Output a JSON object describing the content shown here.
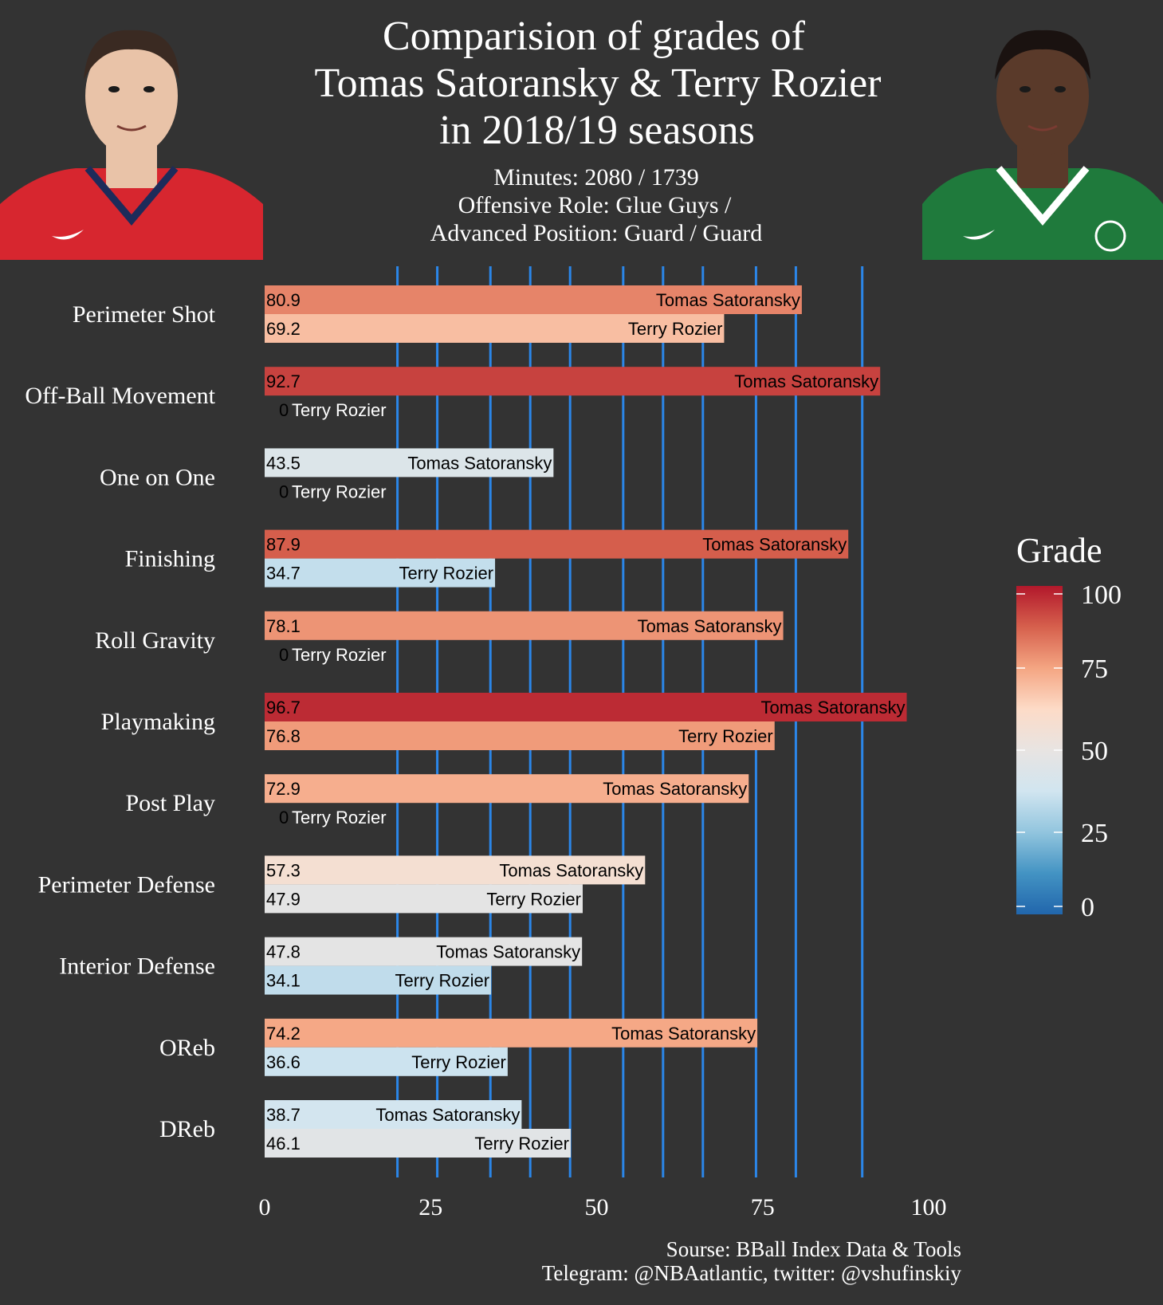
{
  "title_lines": [
    "Comparision of grades of",
    "Tomas Satoransky & Terry Rozier",
    "in 2018/19 seasons"
  ],
  "subtitle_lines": [
    "Minutes: 2080 / 1739",
    "Offensive Role: Glue Guys /",
    "Advanced Position: Guard / Guard"
  ],
  "caption_lines": [
    "Sourse: BBall Index Data & Tools",
    "Telegram: @NBAatlantic, twitter: @vshufinskiy"
  ],
  "players": [
    {
      "name": "Tomas Satoransky",
      "jersey_color": "#d7262f",
      "jersey_trim": "#1d2b5a",
      "skin": "#e9c3a8",
      "hair": "#3a2a22"
    },
    {
      "name": "Terry Rozier",
      "jersey_color": "#1f7a3c",
      "jersey_trim": "#ffffff",
      "skin": "#5a3a2a",
      "hair": "#1a1210"
    }
  ],
  "chart_data": {
    "type": "bar",
    "orientation": "horizontal",
    "categories": [
      "Perimeter Shot",
      "Off-Ball Movement",
      "One on One",
      "Finishing",
      "Roll Gravity",
      "Playmaking",
      "Post Play",
      "Perimeter Defense",
      "Interior Defense",
      "OReb",
      "DReb"
    ],
    "series": [
      {
        "name": "Tomas Satoransky",
        "values": [
          80.9,
          92.7,
          43.5,
          87.9,
          78.1,
          96.7,
          72.9,
          57.3,
          47.8,
          74.2,
          38.7
        ]
      },
      {
        "name": "Terry Rozier",
        "values": [
          69.2,
          0,
          0,
          34.7,
          0,
          76.8,
          0,
          47.9,
          34.1,
          36.6,
          46.1
        ]
      }
    ],
    "value_labels": [
      [
        "80.9",
        "92.7",
        "43.5",
        "87.9",
        "78.1",
        "96.7",
        "72.9",
        "57.3",
        "47.8",
        "74.2",
        "38.7"
      ],
      [
        "69.2",
        "0",
        "0",
        "34.7",
        "0",
        "76.8",
        "0",
        "47.9",
        "34.1",
        "36.6",
        "46.1"
      ]
    ],
    "xlim": [
      0,
      100
    ],
    "x_ticks": [
      0,
      25,
      50,
      75,
      100
    ],
    "x_tick_labels": [
      "0",
      "25",
      "50",
      "75",
      "100"
    ],
    "reference_lines": [
      20,
      26,
      34,
      40,
      46,
      54,
      60,
      66,
      74,
      80,
      90
    ],
    "reference_line_color": "#2b86e8",
    "legend": {
      "title": "Grade",
      "placement": "right",
      "ticks": [
        0,
        25,
        50,
        75,
        100
      ],
      "tick_labels": [
        "0",
        "25",
        "50",
        "75",
        "100"
      ],
      "color_stops": [
        {
          "value": 0,
          "color": "#2166ac"
        },
        {
          "value": 12.5,
          "color": "#4393c3"
        },
        {
          "value": 25,
          "color": "#92c5de"
        },
        {
          "value": 37.5,
          "color": "#d1e5f0"
        },
        {
          "value": 50,
          "color": "#e8e4e2"
        },
        {
          "value": 62.5,
          "color": "#fddbc7"
        },
        {
          "value": 75,
          "color": "#f4a582"
        },
        {
          "value": 87.5,
          "color": "#d6604d"
        },
        {
          "value": 100,
          "color": "#b2182b"
        }
      ]
    },
    "grid": false
  }
}
